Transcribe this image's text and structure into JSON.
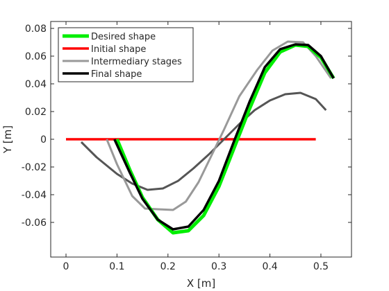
{
  "chart_data": {
    "type": "line",
    "title": "",
    "xlabel": "X [m]",
    "ylabel": "Y [m]",
    "xlim": [
      -0.03,
      0.56
    ],
    "ylim": [
      -0.085,
      0.085
    ],
    "xticks": [
      0,
      0.1,
      0.2,
      0.3,
      0.4,
      0.5
    ],
    "xtick_labels": [
      "0",
      "0.1",
      "0.2",
      "0.3",
      "0.4",
      "0.5"
    ],
    "yticks": [
      -0.06,
      -0.04,
      -0.02,
      0,
      0.02,
      0.04,
      0.06,
      0.08
    ],
    "ytick_labels": [
      "-0.06",
      "-0.04",
      "-0.02",
      "0",
      "0.02",
      "0.04",
      "0.06",
      "0.08"
    ],
    "grid": false,
    "legend_position": "top-left",
    "series": [
      {
        "name": "Initial shape",
        "color": "#ff0000",
        "width": 3.5,
        "x": [
          0.0,
          0.49
        ],
        "y": [
          0.0,
          0.0
        ]
      },
      {
        "name": "",
        "legend": false,
        "color": "#555555",
        "width": 3,
        "x": [
          0.03,
          0.06,
          0.1,
          0.13,
          0.16,
          0.19,
          0.22,
          0.25,
          0.28,
          0.31,
          0.34,
          0.37,
          0.4,
          0.43,
          0.46,
          0.49,
          0.51
        ],
        "y": [
          -0.002,
          -0.013,
          -0.025,
          -0.032,
          -0.0365,
          -0.0355,
          -0.03,
          -0.021,
          -0.011,
          0.0,
          0.011,
          0.021,
          0.028,
          0.0325,
          0.0335,
          0.029,
          0.021
        ]
      },
      {
        "name": "Intermediary stages",
        "color": "#999999",
        "width": 3,
        "x": [
          0.08,
          0.1,
          0.13,
          0.155,
          0.18,
          0.21,
          0.235,
          0.26,
          0.285,
          0.31,
          0.34,
          0.375,
          0.405,
          0.435,
          0.465,
          0.49,
          0.52
        ],
        "y": [
          0.0,
          -0.018,
          -0.041,
          -0.05,
          -0.0505,
          -0.051,
          -0.045,
          -0.031,
          -0.012,
          0.007,
          0.031,
          0.05,
          0.064,
          0.0705,
          0.07,
          0.06,
          0.044
        ]
      },
      {
        "name": "Desired shape",
        "color": "#00ee00",
        "width": 5,
        "x": [
          0.1,
          0.125,
          0.15,
          0.18,
          0.21,
          0.24,
          0.27,
          0.3,
          0.33,
          0.36,
          0.39,
          0.42,
          0.45,
          0.475,
          0.5,
          0.525
        ],
        "y": [
          0.0,
          -0.022,
          -0.042,
          -0.058,
          -0.0675,
          -0.066,
          -0.055,
          -0.034,
          -0.006,
          0.022,
          0.048,
          0.063,
          0.068,
          0.067,
          0.059,
          0.044
        ]
      },
      {
        "name": "Final shape",
        "color": "#000000",
        "width": 3.5,
        "x": [
          0.095,
          0.125,
          0.15,
          0.18,
          0.21,
          0.24,
          0.27,
          0.3,
          0.33,
          0.36,
          0.39,
          0.42,
          0.45,
          0.475,
          0.5,
          0.525
        ],
        "y": [
          0.0,
          -0.024,
          -0.043,
          -0.058,
          -0.065,
          -0.063,
          -0.051,
          -0.03,
          -0.001,
          0.027,
          0.052,
          0.065,
          0.0685,
          0.068,
          0.06,
          0.044
        ]
      }
    ],
    "legend": [
      "Desired shape",
      "Initial shape",
      "Intermediary stages",
      "Final shape"
    ]
  }
}
